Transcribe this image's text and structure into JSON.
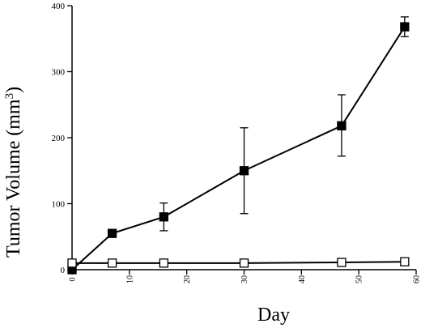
{
  "chart_data": {
    "type": "line",
    "title": "",
    "xlabel": "Day",
    "ylabel_main": "Tumor Volume (mm",
    "ylabel_sup": "3",
    "ylabel_end": ")",
    "xlim": [
      0,
      60
    ],
    "ylim": [
      0,
      400
    ],
    "xticks": [
      0,
      10,
      20,
      30,
      40,
      50,
      60
    ],
    "yticks": [
      0,
      100,
      200,
      300,
      400
    ],
    "grid": false,
    "series": [
      {
        "marker": "filled-square",
        "color": "#000000",
        "x": [
          0,
          7,
          16,
          30,
          47,
          58
        ],
        "y": [
          0,
          55,
          80,
          150,
          218,
          368
        ],
        "err_low": [
          null,
          null,
          59,
          85,
          172,
          353
        ],
        "err_high": [
          null,
          null,
          101,
          215,
          265,
          383
        ]
      },
      {
        "marker": "open-square",
        "color": "#000000",
        "x": [
          0,
          7,
          16,
          30,
          47,
          58
        ],
        "y": [
          10,
          10,
          10,
          10,
          11,
          12
        ]
      }
    ]
  }
}
